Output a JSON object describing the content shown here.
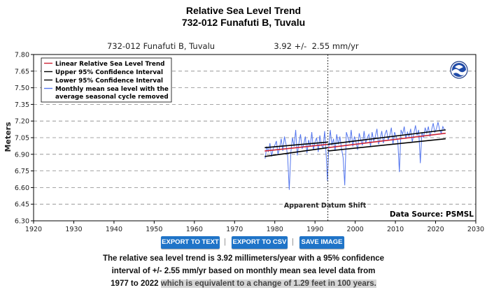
{
  "title_line1": "Relative Sea Level Trend",
  "title_line2": "732-012 Funafuti B, Tuvalu",
  "buttons": {
    "export_text": "EXPORT TO TEXT",
    "export_csv": "EXPORT TO CSV",
    "save_image": "SAVE IMAGE",
    "separator": "|"
  },
  "description": {
    "line1": "The relative sea level trend is 3.92 millimeters/year with a 95% confidence",
    "line2": "interval of +/- 2.55 mm/yr based on monthly mean sea level data from",
    "line3_plain": "1977 to 2022 ",
    "line3_highlight": "which is equivalent to a change of 1.29 feet in 100 years."
  },
  "colors": {
    "trend": "#cc2233",
    "confidence": "#000000",
    "monthly": "#5577ee",
    "button": "#1f74c8",
    "grid": "#888888"
  },
  "chart_data": {
    "type": "line",
    "header_station": "732-012 Funafuti B, Tuvalu",
    "header_rate": "3.92 +/-  2.55 mm/yr",
    "ylabel": "Meters",
    "xlabel": "",
    "xlim": [
      1920,
      2030
    ],
    "ylim": [
      6.3,
      7.8
    ],
    "xticks": [
      1920,
      1930,
      1940,
      1950,
      1960,
      1970,
      1980,
      1990,
      2000,
      2010,
      2020,
      2030
    ],
    "yticks": [
      6.3,
      6.45,
      6.6,
      6.75,
      6.9,
      7.05,
      7.2,
      7.35,
      7.5,
      7.65,
      7.8
    ],
    "grid": "horizontal dashed",
    "legend_position": "top-left",
    "legend": [
      {
        "label": "Linear Relative Sea Level Trend",
        "color": "#cc2233"
      },
      {
        "label": "Upper 95% Confidence Interval",
        "color": "#000000"
      },
      {
        "label": "Lower 95% Confidence Interval",
        "color": "#000000"
      },
      {
        "label": "Monthly mean sea level with the",
        "label2": "average seasonal cycle removed",
        "color": "#5577ee"
      }
    ],
    "datum_shift_year": 1993.2,
    "datum_shift_label": "Apparent Datum Shift",
    "source_label": "Data Source: PSMSL",
    "trend_rate_mm_per_yr": 3.92,
    "trend_ci_mm_per_yr": 2.55,
    "segments": [
      {
        "start": 1977.5,
        "end": 1993.2,
        "trend": [
          6.93,
          6.99
        ],
        "upper": [
          6.96,
          7.01
        ],
        "lower": [
          6.88,
          6.96
        ]
      },
      {
        "start": 1993.2,
        "end": 2022.5,
        "trend": [
          6.96,
          7.09
        ],
        "upper": [
          6.99,
          7.12
        ],
        "lower": [
          6.93,
          7.04
        ]
      }
    ],
    "monthly": {
      "x": [
        1977.6,
        1978.0,
        1978.4,
        1978.8,
        1979.2,
        1979.6,
        1980.0,
        1980.4,
        1980.8,
        1981.2,
        1981.6,
        1982.0,
        1982.4,
        1982.8,
        1983.2,
        1983.6,
        1984.0,
        1984.4,
        1984.8,
        1985.2,
        1985.6,
        1986.0,
        1986.4,
        1986.8,
        1987.2,
        1987.6,
        1988.0,
        1988.4,
        1988.8,
        1989.2,
        1989.6,
        1990.0,
        1990.4,
        1990.8,
        1991.2,
        1991.6,
        1992.0,
        1992.4,
        1992.8,
        1993.1,
        1993.4,
        1993.8,
        1994.2,
        1994.6,
        1995.0,
        1995.4,
        1995.8,
        1996.2,
        1996.6,
        1997.0,
        1997.4,
        1997.8,
        1998.2,
        1998.6,
        1999.0,
        1999.4,
        1999.8,
        2000.2,
        2000.6,
        2001.0,
        2001.4,
        2001.8,
        2002.2,
        2002.6,
        2003.0,
        2003.4,
        2003.8,
        2004.2,
        2004.6,
        2005.0,
        2005.4,
        2005.8,
        2006.2,
        2006.6,
        2007.0,
        2007.4,
        2007.8,
        2008.2,
        2008.6,
        2009.0,
        2009.4,
        2009.8,
        2010.2,
        2010.6,
        2011.0,
        2011.4,
        2011.8,
        2012.2,
        2012.6,
        2013.0,
        2013.4,
        2013.8,
        2014.2,
        2014.6,
        2015.0,
        2015.4,
        2015.8,
        2016.2,
        2016.6,
        2017.0,
        2017.4,
        2017.8,
        2018.2,
        2018.6,
        2019.0,
        2019.4,
        2019.8,
        2020.2,
        2020.6,
        2021.0,
        2021.4,
        2021.8,
        2022.2
      ],
      "y": [
        6.86,
        6.97,
        6.92,
        7.0,
        6.88,
        6.95,
        6.98,
        7.02,
        6.9,
        6.96,
        7.04,
        6.93,
        7.06,
        6.99,
        6.88,
        6.58,
        6.92,
        7.05,
        6.97,
        7.12,
        6.89,
        7.0,
        7.08,
        6.95,
        6.99,
        7.06,
        6.91,
        7.03,
        6.97,
        7.1,
        6.94,
        7.01,
        7.05,
        6.92,
        7.07,
        6.98,
        6.96,
        7.11,
        6.88,
        6.66,
        6.95,
        7.12,
        6.98,
        7.04,
        6.93,
        7.08,
        6.99,
        7.06,
        6.95,
        6.87,
        6.62,
        7.1,
        7.05,
        7.0,
        7.12,
        6.97,
        7.06,
        7.01,
        6.94,
        7.09,
        7.03,
        6.98,
        7.11,
        7.0,
        7.05,
        7.08,
        6.97,
        7.1,
        7.02,
        7.06,
        7.13,
        6.99,
        7.04,
        7.11,
        7.0,
        7.08,
        7.12,
        7.03,
        7.07,
        7.14,
        6.99,
        7.1,
        7.06,
        7.02,
        6.74,
        7.12,
        7.08,
        7.15,
        7.04,
        7.1,
        7.06,
        7.13,
        7.01,
        7.09,
        7.16,
        7.07,
        7.12,
        6.82,
        7.1,
        7.05,
        7.14,
        7.09,
        7.15,
        7.06,
        7.12,
        7.18,
        7.1,
        7.13,
        7.19,
        7.12,
        7.09,
        7.15,
        7.12
      ]
    }
  }
}
